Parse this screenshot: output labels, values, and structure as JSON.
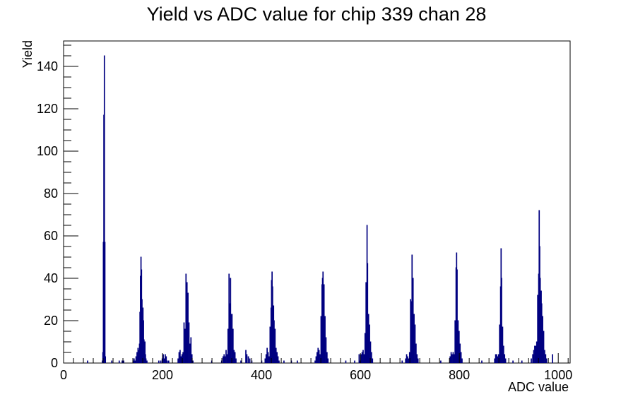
{
  "chart_data": {
    "type": "histogram",
    "title": "Yield vs ADC value for chip 339 chan 28",
    "xlabel": "ADC value",
    "ylabel": "Yield",
    "xlim": [
      0,
      1024
    ],
    "ylim": [
      0,
      152
    ],
    "x_ticks": [
      0,
      200,
      400,
      600,
      800,
      1000
    ],
    "y_ticks": [
      0,
      20,
      40,
      60,
      80,
      100,
      120,
      140
    ],
    "bin_width": 1,
    "line_color": "#000080",
    "grid": false,
    "legend": false,
    "bins": [
      [
        48,
        1
      ],
      [
        78,
        1
      ],
      [
        79,
        5
      ],
      [
        80,
        57
      ],
      [
        81,
        117
      ],
      [
        82,
        145
      ],
      [
        83,
        57
      ],
      [
        84,
        3
      ],
      [
        97,
        1
      ],
      [
        140,
        1
      ],
      [
        142,
        2
      ],
      [
        144,
        1
      ],
      [
        146,
        3
      ],
      [
        148,
        5
      ],
      [
        150,
        7
      ],
      [
        151,
        6
      ],
      [
        152,
        4
      ],
      [
        153,
        9
      ],
      [
        154,
        24
      ],
      [
        155,
        41
      ],
      [
        156,
        50
      ],
      [
        157,
        44
      ],
      [
        158,
        30
      ],
      [
        159,
        22
      ],
      [
        160,
        26
      ],
      [
        161,
        20
      ],
      [
        162,
        11
      ],
      [
        163,
        8
      ],
      [
        164,
        10
      ],
      [
        165,
        4
      ],
      [
        166,
        2
      ],
      [
        168,
        1
      ],
      [
        112,
        1
      ],
      [
        118,
        1
      ],
      [
        121,
        1
      ],
      [
        192,
        1
      ],
      [
        196,
        1
      ],
      [
        199,
        2
      ],
      [
        201,
        4
      ],
      [
        203,
        2
      ],
      [
        205,
        4
      ],
      [
        207,
        3
      ],
      [
        209,
        1
      ],
      [
        212,
        1
      ],
      [
        231,
        2
      ],
      [
        233,
        5
      ],
      [
        235,
        6
      ],
      [
        237,
        3
      ],
      [
        239,
        4
      ],
      [
        241,
        5
      ],
      [
        243,
        19
      ],
      [
        245,
        16
      ],
      [
        247,
        42
      ],
      [
        249,
        38
      ],
      [
        250,
        30
      ],
      [
        251,
        33
      ],
      [
        253,
        19
      ],
      [
        255,
        9
      ],
      [
        257,
        12
      ],
      [
        259,
        4
      ],
      [
        261,
        1
      ],
      [
        299,
        1
      ],
      [
        319,
        1
      ],
      [
        322,
        3
      ],
      [
        324,
        4
      ],
      [
        326,
        3
      ],
      [
        328,
        6
      ],
      [
        330,
        4
      ],
      [
        332,
        16
      ],
      [
        334,
        42
      ],
      [
        336,
        28
      ],
      [
        337,
        40
      ],
      [
        338,
        23
      ],
      [
        340,
        23
      ],
      [
        342,
        16
      ],
      [
        344,
        6
      ],
      [
        346,
        5
      ],
      [
        348,
        2
      ],
      [
        358,
        1
      ],
      [
        368,
        6
      ],
      [
        370,
        4
      ],
      [
        373,
        3
      ],
      [
        376,
        2
      ],
      [
        380,
        1
      ],
      [
        400,
        1
      ],
      [
        407,
        2
      ],
      [
        409,
        4
      ],
      [
        411,
        7
      ],
      [
        413,
        5
      ],
      [
        415,
        3
      ],
      [
        417,
        17
      ],
      [
        419,
        26
      ],
      [
        420,
        39
      ],
      [
        421,
        43
      ],
      [
        422,
        36
      ],
      [
        424,
        27
      ],
      [
        425,
        20
      ],
      [
        427,
        16
      ],
      [
        429,
        7
      ],
      [
        431,
        5
      ],
      [
        433,
        3
      ],
      [
        435,
        1
      ],
      [
        445,
        1
      ],
      [
        460,
        1
      ],
      [
        472,
        1
      ],
      [
        508,
        1
      ],
      [
        510,
        3
      ],
      [
        512,
        5
      ],
      [
        514,
        7
      ],
      [
        516,
        6
      ],
      [
        518,
        4
      ],
      [
        520,
        22
      ],
      [
        522,
        37
      ],
      [
        523,
        40
      ],
      [
        524,
        43
      ],
      [
        526,
        37
      ],
      [
        528,
        22
      ],
      [
        530,
        12
      ],
      [
        532,
        5
      ],
      [
        534,
        2
      ],
      [
        570,
        1
      ],
      [
        588,
        1
      ],
      [
        597,
        4
      ],
      [
        599,
        1
      ],
      [
        601,
        4
      ],
      [
        603,
        5
      ],
      [
        605,
        6
      ],
      [
        607,
        4
      ],
      [
        609,
        14
      ],
      [
        611,
        38
      ],
      [
        613,
        65
      ],
      [
        614,
        47
      ],
      [
        616,
        23
      ],
      [
        618,
        18
      ],
      [
        620,
        10
      ],
      [
        622,
        5
      ],
      [
        624,
        2
      ],
      [
        684,
        1
      ],
      [
        691,
        2
      ],
      [
        693,
        4
      ],
      [
        695,
        3
      ],
      [
        697,
        2
      ],
      [
        699,
        5
      ],
      [
        701,
        30
      ],
      [
        703,
        29
      ],
      [
        704,
        51
      ],
      [
        706,
        40
      ],
      [
        707,
        22
      ],
      [
        708,
        23
      ],
      [
        710,
        18
      ],
      [
        712,
        9
      ],
      [
        714,
        4
      ],
      [
        716,
        2
      ],
      [
        762,
        1
      ],
      [
        781,
        3
      ],
      [
        783,
        5
      ],
      [
        785,
        4
      ],
      [
        787,
        5
      ],
      [
        789,
        4
      ],
      [
        791,
        20
      ],
      [
        793,
        45
      ],
      [
        794,
        52
      ],
      [
        795,
        44
      ],
      [
        796,
        18
      ],
      [
        797,
        20
      ],
      [
        799,
        15
      ],
      [
        801,
        9
      ],
      [
        803,
        5
      ],
      [
        805,
        2
      ],
      [
        845,
        1
      ],
      [
        871,
        2
      ],
      [
        873,
        4
      ],
      [
        875,
        4
      ],
      [
        877,
        3
      ],
      [
        879,
        4
      ],
      [
        881,
        18
      ],
      [
        883,
        36
      ],
      [
        884,
        54
      ],
      [
        885,
        40
      ],
      [
        887,
        17
      ],
      [
        889,
        8
      ],
      [
        891,
        4
      ],
      [
        893,
        2
      ],
      [
        908,
        1
      ],
      [
        926,
        1
      ],
      [
        945,
        2
      ],
      [
        948,
        4
      ],
      [
        950,
        6
      ],
      [
        952,
        8
      ],
      [
        954,
        8
      ],
      [
        956,
        10
      ],
      [
        958,
        32
      ],
      [
        960,
        42
      ],
      [
        961,
        72
      ],
      [
        962,
        55
      ],
      [
        963,
        40
      ],
      [
        965,
        34
      ],
      [
        966,
        28
      ],
      [
        968,
        22
      ],
      [
        970,
        15
      ],
      [
        972,
        6
      ],
      [
        974,
        4
      ],
      [
        976,
        2
      ],
      [
        988,
        4
      ]
    ]
  }
}
